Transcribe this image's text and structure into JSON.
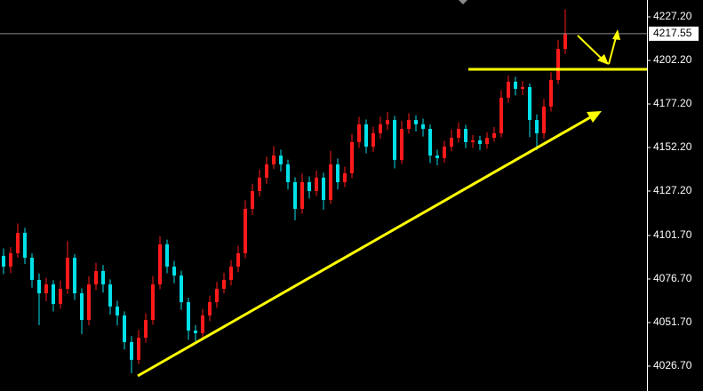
{
  "chart_data": {
    "type": "candlestick",
    "up_color": "#ff1a1a",
    "down_color": "#00e0e8",
    "ylim": [
      4012.4,
      4236.9
    ],
    "yticks": [
      {
        "value": 4227.2,
        "label": "4227.20"
      },
      {
        "value": 4202.2,
        "label": "4202.20"
      },
      {
        "value": 4177.2,
        "label": "4177.20"
      },
      {
        "value": 4152.2,
        "label": "4152.20"
      },
      {
        "value": 4127.2,
        "label": "4127.20"
      },
      {
        "value": 4101.7,
        "label": "4101.70"
      },
      {
        "value": 4076.7,
        "label": "4076.70"
      },
      {
        "value": 4051.7,
        "label": "4051.70"
      },
      {
        "value": 4026.7,
        "label": "4026.70"
      }
    ],
    "last_price": 4217.55,
    "open": [
      4090.0,
      4083.8,
      4091.5,
      4103.2,
      4088.9,
      4076.2,
      4068.5,
      4073.6,
      4062.4,
      4071.1,
      4088.9,
      4068.5,
      4053.2,
      4073.6,
      4081.3,
      4073.6,
      4060.9,
      4055.8,
      4040.5,
      4030.3,
      4043.0,
      4053.2,
      4073.6,
      4096.6,
      4083.8,
      4078.7,
      4063.4,
      4047.1,
      4045.6,
      4055.8,
      4063.4,
      4071.1,
      4076.2,
      4083.8,
      4091.5,
      4117.0,
      4127.2,
      4134.9,
      4142.5,
      4147.6,
      4142.5,
      4132.3,
      4117.0,
      4132.3,
      4127.2,
      4134.9,
      4122.1,
      4142.5,
      4132.3,
      4137.4,
      4155.3,
      4165.5,
      4152.7,
      4160.4,
      4165.5,
      4168.0,
      4145.1,
      4162.9,
      4168.0,
      4165.5,
      4162.9,
      4147.6,
      4146.1,
      4152.7,
      4157.8,
      4162.9,
      4155.3,
      4156.3,
      4154.2,
      4157.8,
      4160.4,
      4180.8,
      4190.0,
      4185.9,
      4186.9,
      4168.0,
      4160.4,
      4175.7,
      4191.0,
      4208.8
    ],
    "high": [
      4094.2,
      4095.0,
      4108.6,
      4106.1,
      4091.4,
      4079.9,
      4077.3,
      4076.0,
      4075.8,
      4098.5,
      4091.0,
      4071.3,
      4078.2,
      4086.0,
      4084.7,
      4076.5,
      4064.2,
      4058.1,
      4043.9,
      4047.5,
      4057.0,
      4078.4,
      4101.2,
      4099.3,
      4087.1,
      4081.5,
      4066.0,
      4050.3,
      4059.4,
      4067.1,
      4075.0,
      4080.3,
      4087.5,
      4095.8,
      4121.9,
      4131.4,
      4139.6,
      4147.0,
      4153.1,
      4151.0,
      4145.2,
      4135.1,
      4137.2,
      4135.6,
      4139.0,
      4137.8,
      4150.3,
      4145.9,
      4141.2,
      4160.0,
      4169.8,
      4168.3,
      4164.1,
      4169.9,
      4172.6,
      4170.4,
      4167.5,
      4171.9,
      4170.7,
      4168.8,
      4165.4,
      4150.9,
      4156.0,
      4162.5,
      4166.7,
      4165.2,
      4159.4,
      4158.9,
      4161.0,
      4164.0,
      4185.1,
      4193.6,
      4192.8,
      4190.3,
      4189.0,
      4171.2,
      4180.0,
      4195.4,
      4214.0,
      4231.5
    ],
    "low": [
      4079.5,
      4080.1,
      4089.0,
      4085.3,
      4071.8,
      4050.2,
      4064.0,
      4058.1,
      4059.6,
      4068.2,
      4064.7,
      4045.0,
      4050.1,
      4070.4,
      4068.9,
      4056.3,
      4050.0,
      4036.2,
      4022.6,
      4027.8,
      4040.1,
      4050.5,
      4070.9,
      4080.0,
      4074.2,
      4059.0,
      4041.8,
      4040.9,
      4043.0,
      4052.5,
      4060.2,
      4068.4,
      4073.0,
      4080.6,
      4088.7,
      4113.5,
      4124.0,
      4131.2,
      4139.8,
      4138.4,
      4128.0,
      4110.4,
      4114.1,
      4122.9,
      4124.3,
      4116.5,
      4119.8,
      4128.1,
      4129.5,
      4134.6,
      4152.0,
      4148.9,
      4149.6,
      4157.2,
      4162.3,
      4140.2,
      4142.8,
      4160.1,
      4161.4,
      4158.5,
      4143.3,
      4142.0,
      4143.4,
      4150.1,
      4155.0,
      4151.8,
      4152.0,
      4150.7,
      4151.5,
      4155.6,
      4158.0,
      4177.9,
      4182.1,
      4182.4,
      4158.2,
      4150.6,
      4157.3,
      4172.8,
      4188.5,
      4205.9
    ],
    "close": [
      4083.8,
      4091.5,
      4103.2,
      4088.9,
      4076.2,
      4068.5,
      4073.6,
      4062.4,
      4071.1,
      4088.9,
      4068.5,
      4053.2,
      4073.6,
      4081.3,
      4073.6,
      4060.9,
      4055.8,
      4040.5,
      4030.3,
      4043.0,
      4053.2,
      4073.6,
      4096.6,
      4083.8,
      4078.7,
      4063.4,
      4047.1,
      4045.6,
      4055.8,
      4063.4,
      4071.1,
      4076.2,
      4083.8,
      4091.5,
      4117.0,
      4127.2,
      4134.9,
      4142.5,
      4147.6,
      4142.5,
      4132.3,
      4117.0,
      4132.3,
      4127.2,
      4134.9,
      4122.1,
      4142.5,
      4132.3,
      4137.4,
      4155.3,
      4165.5,
      4152.7,
      4160.4,
      4165.5,
      4168.0,
      4145.1,
      4162.9,
      4168.0,
      4165.5,
      4162.9,
      4147.6,
      4146.1,
      4152.7,
      4157.8,
      4162.9,
      4155.3,
      4156.3,
      4154.2,
      4157.8,
      4160.4,
      4180.8,
      4190.0,
      4185.9,
      4186.9,
      4168.0,
      4160.4,
      4175.7,
      4191.0,
      4208.8,
      4217.55
    ]
  }
}
